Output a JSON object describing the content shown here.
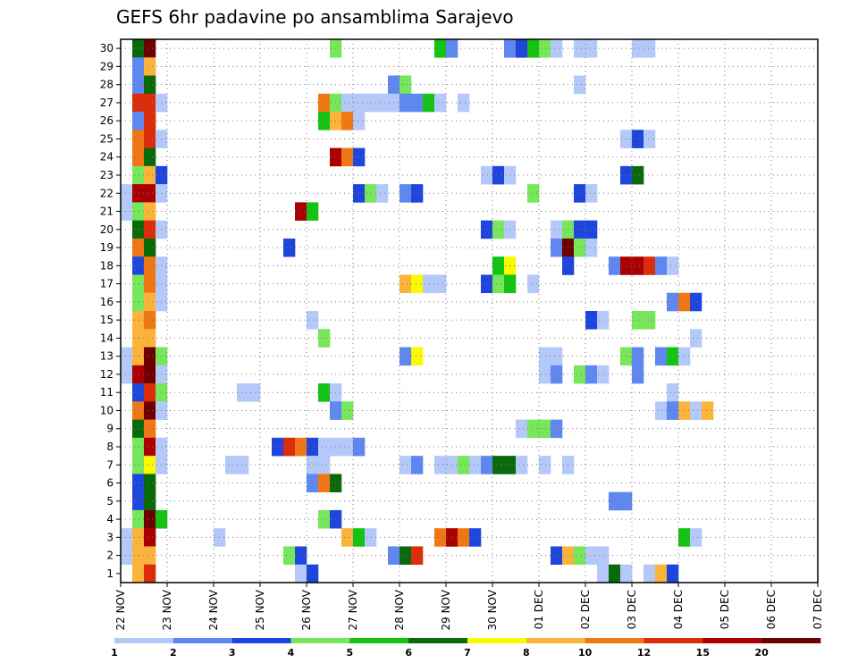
{
  "chart_data": {
    "type": "heatmap",
    "title": "GEFS 6hr padavine po ansamblima Sarajevo",
    "y_members": [
      "1",
      "2",
      "3",
      "4",
      "5",
      "6",
      "7",
      "8",
      "9",
      "10",
      "11",
      "12",
      "13",
      "14",
      "15",
      "16",
      "17",
      "18",
      "19",
      "20",
      "21",
      "22",
      "23",
      "24",
      "25",
      "26",
      "27",
      "28",
      "29",
      "30"
    ],
    "x_dates": [
      "22 NOV",
      "23 NOV",
      "24 NOV",
      "25 NOV",
      "26 NOV",
      "27 NOV",
      "28 NOV",
      "29 NOV",
      "30 NOV",
      "01 DEC",
      "02 DEC",
      "03 DEC",
      "04 DEC",
      "05 DEC",
      "06 DEC",
      "07 DEC"
    ],
    "steps_per_day": 4,
    "grid": "dotted",
    "colorbar": {
      "labels": [
        "1",
        "2",
        "3",
        "4",
        "5",
        "6",
        "7",
        "8",
        "10",
        "12",
        "15",
        "20"
      ],
      "colors": [
        "#b4c8fa",
        "#5f87f0",
        "#1e46dc",
        "#78e65a",
        "#14c314",
        "#0a690a",
        "#fafa00",
        "#fab43c",
        "#f07814",
        "#dc2d0a",
        "#aa0000",
        "#6e0000"
      ]
    },
    "cells": [
      [
        30,
        1,
        6
      ],
      [
        30,
        2,
        12
      ],
      [
        30,
        18,
        4
      ],
      [
        30,
        27,
        5
      ],
      [
        30,
        28,
        2
      ],
      [
        30,
        33,
        2
      ],
      [
        30,
        34,
        3
      ],
      [
        30,
        35,
        5
      ],
      [
        30,
        36,
        4
      ],
      [
        30,
        37,
        1
      ],
      [
        30,
        39,
        1
      ],
      [
        30,
        40,
        1
      ],
      [
        30,
        44,
        1
      ],
      [
        30,
        45,
        1
      ],
      [
        29,
        1,
        2
      ],
      [
        29,
        2,
        8
      ],
      [
        28,
        1,
        2
      ],
      [
        28,
        2,
        6
      ],
      [
        28,
        23,
        2
      ],
      [
        28,
        24,
        4
      ],
      [
        28,
        39,
        1
      ],
      [
        27,
        1,
        10
      ],
      [
        27,
        2,
        10
      ],
      [
        27,
        3,
        1
      ],
      [
        27,
        17,
        9
      ],
      [
        27,
        18,
        4
      ],
      [
        27,
        19,
        1
      ],
      [
        27,
        20,
        1
      ],
      [
        27,
        21,
        1
      ],
      [
        27,
        22,
        1
      ],
      [
        27,
        23,
        1
      ],
      [
        27,
        24,
        2
      ],
      [
        27,
        25,
        2
      ],
      [
        27,
        26,
        5
      ],
      [
        27,
        27,
        1
      ],
      [
        27,
        29,
        1
      ],
      [
        26,
        1,
        2
      ],
      [
        26,
        2,
        10
      ],
      [
        26,
        17,
        5
      ],
      [
        26,
        18,
        8
      ],
      [
        26,
        19,
        9
      ],
      [
        26,
        20,
        1
      ],
      [
        25,
        1,
        9
      ],
      [
        25,
        2,
        10
      ],
      [
        25,
        3,
        1
      ],
      [
        25,
        43,
        1
      ],
      [
        25,
        44,
        3
      ],
      [
        25,
        45,
        1
      ],
      [
        24,
        1,
        9
      ],
      [
        24,
        2,
        6
      ],
      [
        24,
        18,
        11
      ],
      [
        24,
        19,
        9
      ],
      [
        24,
        20,
        3
      ],
      [
        23,
        1,
        4
      ],
      [
        23,
        2,
        8
      ],
      [
        23,
        3,
        3
      ],
      [
        23,
        31,
        1
      ],
      [
        23,
        32,
        3
      ],
      [
        23,
        33,
        1
      ],
      [
        23,
        43,
        3
      ],
      [
        23,
        44,
        6
      ],
      [
        22,
        0,
        1
      ],
      [
        22,
        1,
        11
      ],
      [
        22,
        2,
        11
      ],
      [
        22,
        3,
        1
      ],
      [
        22,
        20,
        3
      ],
      [
        22,
        21,
        4
      ],
      [
        22,
        22,
        1
      ],
      [
        22,
        24,
        2
      ],
      [
        22,
        25,
        3
      ],
      [
        22,
        35,
        4
      ],
      [
        22,
        39,
        3
      ],
      [
        22,
        40,
        1
      ],
      [
        21,
        0,
        1
      ],
      [
        21,
        1,
        4
      ],
      [
        21,
        2,
        8
      ],
      [
        21,
        15,
        11
      ],
      [
        21,
        16,
        5
      ],
      [
        20,
        1,
        6
      ],
      [
        20,
        2,
        10
      ],
      [
        20,
        3,
        1
      ],
      [
        20,
        31,
        3
      ],
      [
        20,
        32,
        4
      ],
      [
        20,
        33,
        1
      ],
      [
        20,
        37,
        1
      ],
      [
        20,
        38,
        4
      ],
      [
        20,
        39,
        3
      ],
      [
        20,
        40,
        3
      ],
      [
        19,
        1,
        9
      ],
      [
        19,
        2,
        6
      ],
      [
        19,
        14,
        3
      ],
      [
        19,
        37,
        2
      ],
      [
        19,
        38,
        12
      ],
      [
        19,
        39,
        4
      ],
      [
        19,
        40,
        1
      ],
      [
        18,
        1,
        3
      ],
      [
        18,
        2,
        9
      ],
      [
        18,
        3,
        1
      ],
      [
        18,
        32,
        5
      ],
      [
        18,
        33,
        7
      ],
      [
        18,
        38,
        3
      ],
      [
        18,
        42,
        2
      ],
      [
        18,
        43,
        11
      ],
      [
        18,
        44,
        11
      ],
      [
        18,
        45,
        10
      ],
      [
        18,
        46,
        2
      ],
      [
        18,
        47,
        1
      ],
      [
        17,
        1,
        4
      ],
      [
        17,
        2,
        9
      ],
      [
        17,
        3,
        1
      ],
      [
        17,
        24,
        8
      ],
      [
        17,
        25,
        7
      ],
      [
        17,
        26,
        1
      ],
      [
        17,
        27,
        1
      ],
      [
        17,
        31,
        3
      ],
      [
        17,
        32,
        4
      ],
      [
        17,
        33,
        5
      ],
      [
        17,
        35,
        1
      ],
      [
        16,
        1,
        4
      ],
      [
        16,
        2,
        8
      ],
      [
        16,
        3,
        1
      ],
      [
        16,
        47,
        2
      ],
      [
        16,
        48,
        9
      ],
      [
        16,
        49,
        3
      ],
      [
        15,
        1,
        8
      ],
      [
        15,
        2,
        9
      ],
      [
        15,
        16,
        1
      ],
      [
        15,
        40,
        3
      ],
      [
        15,
        41,
        1
      ],
      [
        15,
        44,
        4
      ],
      [
        15,
        45,
        4
      ],
      [
        14,
        1,
        8
      ],
      [
        14,
        2,
        8
      ],
      [
        14,
        17,
        4
      ],
      [
        14,
        49,
        1
      ],
      [
        13,
        0,
        1
      ],
      [
        13,
        1,
        8
      ],
      [
        13,
        2,
        12
      ],
      [
        13,
        3,
        4
      ],
      [
        13,
        24,
        2
      ],
      [
        13,
        25,
        7
      ],
      [
        13,
        36,
        1
      ],
      [
        13,
        37,
        1
      ],
      [
        13,
        43,
        4
      ],
      [
        13,
        44,
        2
      ],
      [
        13,
        46,
        2
      ],
      [
        13,
        47,
        5
      ],
      [
        13,
        48,
        1
      ],
      [
        12,
        0,
        1
      ],
      [
        12,
        1,
        11
      ],
      [
        12,
        2,
        12
      ],
      [
        12,
        3,
        1
      ],
      [
        12,
        36,
        1
      ],
      [
        12,
        37,
        2
      ],
      [
        12,
        39,
        4
      ],
      [
        12,
        40,
        2
      ],
      [
        12,
        41,
        1
      ],
      [
        12,
        44,
        2
      ],
      [
        11,
        1,
        3
      ],
      [
        11,
        2,
        10
      ],
      [
        11,
        3,
        4
      ],
      [
        11,
        10,
        1
      ],
      [
        11,
        11,
        1
      ],
      [
        11,
        17,
        5
      ],
      [
        11,
        18,
        1
      ],
      [
        11,
        47,
        1
      ],
      [
        10,
        1,
        9
      ],
      [
        10,
        2,
        12
      ],
      [
        10,
        3,
        1
      ],
      [
        10,
        18,
        2
      ],
      [
        10,
        19,
        4
      ],
      [
        10,
        46,
        1
      ],
      [
        10,
        47,
        2
      ],
      [
        10,
        48,
        8
      ],
      [
        10,
        49,
        1
      ],
      [
        10,
        50,
        8
      ],
      [
        9,
        1,
        6
      ],
      [
        9,
        2,
        9
      ],
      [
        9,
        34,
        1
      ],
      [
        9,
        35,
        4
      ],
      [
        9,
        36,
        4
      ],
      [
        9,
        37,
        2
      ],
      [
        8,
        1,
        4
      ],
      [
        8,
        2,
        11
      ],
      [
        8,
        3,
        1
      ],
      [
        8,
        13,
        3
      ],
      [
        8,
        14,
        10
      ],
      [
        8,
        15,
        9
      ],
      [
        8,
        16,
        3
      ],
      [
        8,
        17,
        1
      ],
      [
        8,
        18,
        1
      ],
      [
        8,
        19,
        1
      ],
      [
        8,
        20,
        2
      ],
      [
        7,
        1,
        4
      ],
      [
        7,
        2,
        7
      ],
      [
        7,
        3,
        1
      ],
      [
        7,
        9,
        1
      ],
      [
        7,
        10,
        1
      ],
      [
        7,
        16,
        1
      ],
      [
        7,
        17,
        1
      ],
      [
        7,
        24,
        1
      ],
      [
        7,
        25,
        2
      ],
      [
        7,
        27,
        1
      ],
      [
        7,
        28,
        1
      ],
      [
        7,
        29,
        4
      ],
      [
        7,
        30,
        1
      ],
      [
        7,
        31,
        2
      ],
      [
        7,
        32,
        6
      ],
      [
        7,
        33,
        6
      ],
      [
        7,
        34,
        1
      ],
      [
        7,
        36,
        1
      ],
      [
        7,
        38,
        1
      ],
      [
        6,
        1,
        3
      ],
      [
        6,
        2,
        6
      ],
      [
        6,
        16,
        2
      ],
      [
        6,
        17,
        9
      ],
      [
        6,
        18,
        6
      ],
      [
        5,
        1,
        3
      ],
      [
        5,
        2,
        6
      ],
      [
        5,
        42,
        2
      ],
      [
        5,
        43,
        2
      ],
      [
        4,
        1,
        4
      ],
      [
        4,
        2,
        12
      ],
      [
        4,
        3,
        5
      ],
      [
        4,
        17,
        4
      ],
      [
        4,
        18,
        3
      ],
      [
        3,
        0,
        1
      ],
      [
        3,
        1,
        8
      ],
      [
        3,
        2,
        11
      ],
      [
        3,
        8,
        1
      ],
      [
        3,
        19,
        8
      ],
      [
        3,
        20,
        5
      ],
      [
        3,
        21,
        1
      ],
      [
        3,
        27,
        9
      ],
      [
        3,
        28,
        11
      ],
      [
        3,
        29,
        9
      ],
      [
        3,
        30,
        3
      ],
      [
        3,
        48,
        5
      ],
      [
        3,
        49,
        1
      ],
      [
        2,
        0,
        1
      ],
      [
        2,
        1,
        8
      ],
      [
        2,
        2,
        8
      ],
      [
        2,
        14,
        4
      ],
      [
        2,
        15,
        3
      ],
      [
        2,
        23,
        2
      ],
      [
        2,
        24,
        6
      ],
      [
        2,
        25,
        10
      ],
      [
        2,
        37,
        3
      ],
      [
        2,
        38,
        8
      ],
      [
        2,
        39,
        4
      ],
      [
        2,
        40,
        1
      ],
      [
        2,
        41,
        1
      ],
      [
        1,
        1,
        8
      ],
      [
        1,
        2,
        10
      ],
      [
        1,
        15,
        1
      ],
      [
        1,
        16,
        3
      ],
      [
        1,
        41,
        1
      ],
      [
        1,
        42,
        6
      ],
      [
        1,
        43,
        1
      ],
      [
        1,
        45,
        1
      ],
      [
        1,
        46,
        8
      ],
      [
        1,
        47,
        3
      ]
    ]
  }
}
